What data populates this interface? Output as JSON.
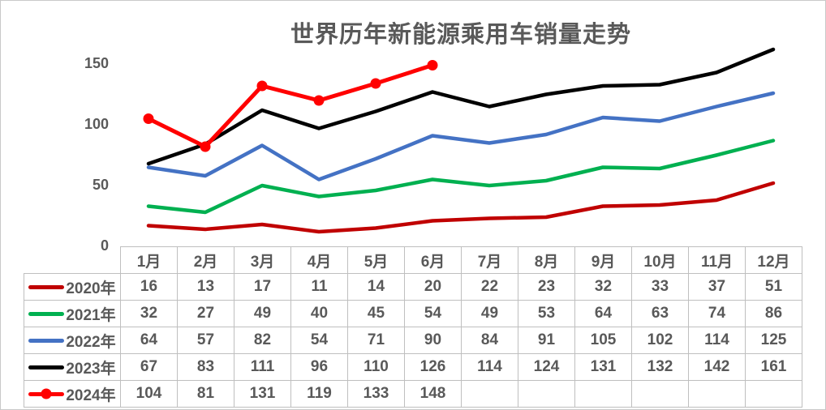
{
  "chart_data": {
    "type": "line",
    "title": "世界历年新能源乘用车销量走势",
    "categories": [
      "1月",
      "2月",
      "3月",
      "4月",
      "5月",
      "6月",
      "7月",
      "8月",
      "9月",
      "10月",
      "11月",
      "12月"
    ],
    "y_ticks": [
      0,
      50,
      100,
      150
    ],
    "ylim": [
      0,
      170
    ],
    "grid": false,
    "legend_position": "table-left-column",
    "axis_text_color": "#595959",
    "table_border_color": "#bfbfbf",
    "series": [
      {
        "name": "2020年",
        "color": "#C00000",
        "marker": false,
        "values": [
          16,
          13,
          17,
          11,
          14,
          20,
          22,
          23,
          32,
          33,
          37,
          51
        ]
      },
      {
        "name": "2021年",
        "color": "#00B050",
        "marker": false,
        "values": [
          32,
          27,
          49,
          40,
          45,
          54,
          49,
          53,
          64,
          63,
          74,
          86
        ]
      },
      {
        "name": "2022年",
        "color": "#4472C4",
        "marker": false,
        "values": [
          64,
          57,
          82,
          54,
          71,
          90,
          84,
          91,
          105,
          102,
          114,
          125
        ]
      },
      {
        "name": "2023年",
        "color": "#000000",
        "marker": false,
        "values": [
          67,
          83,
          111,
          96,
          110,
          126,
          114,
          124,
          131,
          132,
          142,
          161
        ]
      },
      {
        "name": "2024年",
        "color": "#FF0000",
        "marker": true,
        "values": [
          104,
          81,
          131,
          119,
          133,
          148
        ]
      }
    ]
  }
}
